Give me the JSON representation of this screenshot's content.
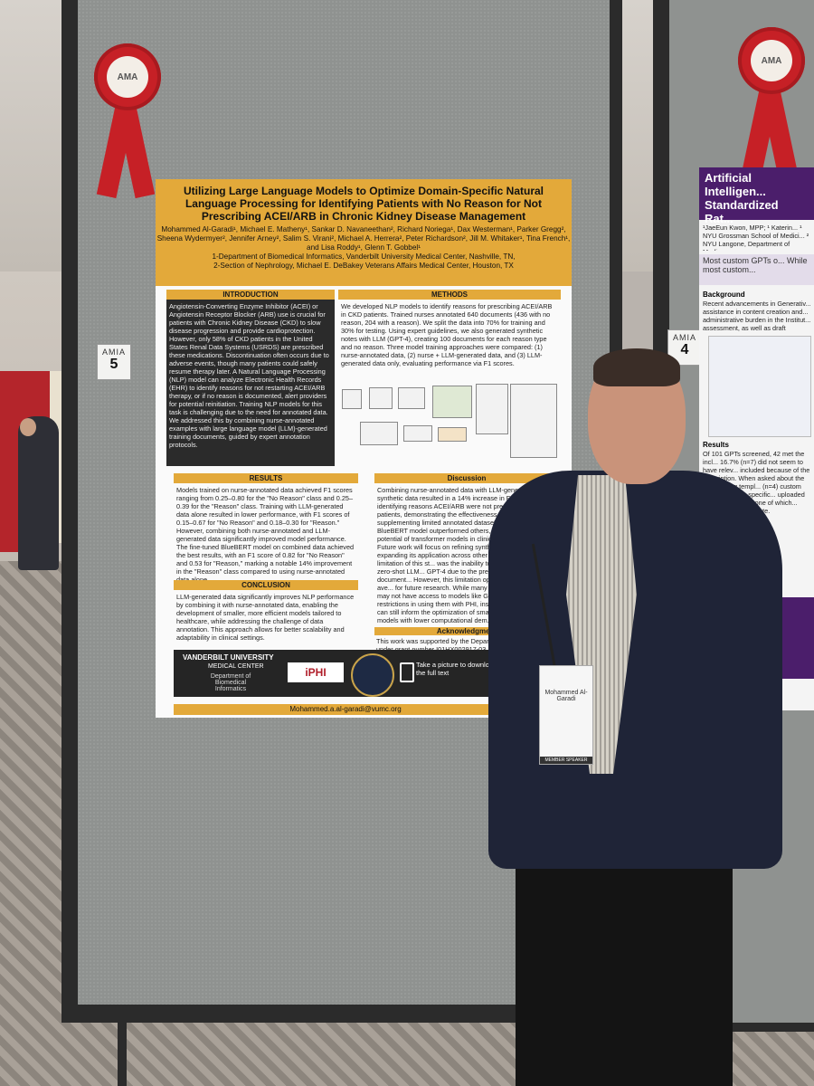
{
  "booth_numbers": {
    "left": "5",
    "right": "4",
    "brand": "AMIA"
  },
  "ribbons": {
    "left_label": "AMA",
    "right_label": "AMA"
  },
  "poster": {
    "title": "Utilizing Large Language Models to Optimize Domain-Specific Natural Language Processing for Identifying Patients with No Reason for Not Prescribing ACEI/ARB in Chronic Kidney Disease Management",
    "authors": "Mohammed Al-Garadi¹, Michael E. Matheny¹, Sankar D. Navaneethan², Richard Noriega¹, Dax Westerman¹, Parker Gregg², Sheena Wydermyer², Jennifer Arney², Salim S. Virani², Michael A. Herrera², Peter Richardson², Jill M. Whitaker¹, Tina French¹, and Lisa Roddy¹, Glenn T. Gobbel¹",
    "affil1": "1-Department of Biomedical Informatics, Vanderbilt University Medical Center, Nashville, TN,",
    "affil2": "2-Section of Nephrology, Michael E. DeBakey Veterans Affairs Medical Center, Houston, TX",
    "intro_head": "INTRODUCTION",
    "intro_text": "Angiotensin-Converting Enzyme Inhibitor (ACEI) or Angiotensin Receptor Blocker (ARB) use is crucial for patients with Chronic Kidney Disease (CKD) to slow disease progression and provide cardioprotection. However, only 58% of CKD patients in the United States Renal Data Systems (USRDS) are prescribed these medications. Discontinuation often occurs due to adverse events, though many patients could safely resume therapy later. A Natural Language Processing (NLP) model can analyze Electronic Health Records (EHR) to identify reasons for not restarting ACEI/ARB therapy, or if no reason is documented, alert providers for potential reinitiation. Training NLP models for this task is challenging due to the need for annotated data. We addressed this by combining nurse-annotated examples with large language model (LLM)-generated training documents, guided by expert annotation protocols.",
    "methods_head": "METHODS",
    "methods_text": "We developed NLP models to identify reasons for prescribing ACEI/ARB in CKD patients. Trained nurses annotated 640 documents (436 with no reason, 204 with a reason). We split the data into 70% for training and 30% for testing. Using expert guidelines, we also generated synthetic notes with LLM (GPT-4), creating 100 documents for each reason type and no reason. Three model training approaches were compared: (1) nurse-annotated data, (2) nurse + LLM-generated data, and (3) LLM-generated data only, evaluating performance via F1 scores.",
    "results_head": "RESULTS",
    "results_text": "Models trained on nurse-annotated data achieved F1 scores ranging from 0.25–0.80 for the \"No Reason\" class and 0.25–0.39 for the \"Reason\" class. Training with LLM-generated data alone resulted in lower performance, with F1 scores of 0.15–0.67 for \"No Reason\" and 0.18–0.30 for \"Reason.\" However, combining both nurse-annotated and LLM-generated data significantly improved model performance. The fine-tuned BlueBERT model on combined data achieved the best results, with an F1 score of 0.82 for \"No Reason\" and 0.53 for \"Reason,\" marking a notable 14% improvement in the \"Reason\" class compared to using nurse-annotated data alone.",
    "discussion_head": "Discussion",
    "discussion_text": "Combining nurse-annotated data with LLM-generated synthetic data resulted in a 14% increase in F1 score for identifying reasons ACEI/ARB were not prescribed in CKD patients, demonstrating the effectiveness of synthetic data in supplementing limited annotated datasets. The fine-tuned BlueBERT model outperformed others, underscoring the potential of transformer models in clinical text analysis. Future work will focus on refining synthetic data and expanding its application across other clinical cases. A limitation of this st... was the inability to directly compare zero-shot LLM... GPT-4 due to the presence of PHI in our document... However, this limitation opens up an important ave... for future research. While many healthcare organiz... may not have access to models like GPT-4 or face... restrictions in using them with PHI, insights from s... models can still inform the optimization of smaller... deployable models with lower computational dem...",
    "conclusion_head": "CONCLUSION",
    "conclusion_text": "LLM-generated data significantly improves NLP performance by combining it with nurse-annotated data, enabling the development of smaller, more efficient models tailored to healthcare, while addressing the challenge of data annotation. This approach allows for better scalability and adaptability in clinical settings.",
    "ack_head": "Acknowledgment",
    "ack_text": "This work was supported by the Department of Vetera... under grant number I01HX002917-03.",
    "footer_vu": "VANDERBILT UNIVERSITY",
    "footer_mc": "MEDICAL CENTER",
    "footer_dept": "Department of Biomedical Informatics",
    "footer_iphi": "iPHI",
    "footer_qr_text": "Take a picture to download the full text",
    "email": "Mohammed.a.al-garadi@vumc.org"
  },
  "right_poster": {
    "title": "Artificial Intelligen... Standardized Rat...",
    "authors": "¹JaeEun Kwon, MPP; ¹ Katerin... ¹ NYU Grossman School of Medici... ² NYU Langone, Department of Medi...",
    "banner": "Most custom GPTs o... While most custom...",
    "background_head": "Background",
    "background_text": "Recent advancements in Generativ... assistance in content creation and... administrative burden in the Institut... assessment, as well as draft protoc...",
    "results_head": "Results",
    "results_text": "Of 101 GPTs screened, 42 met the incl... 16.7% (n=7) did not seem to have relev... included because of the description. When asked about the IRB training templ... (n=4) custom GPTs shared a specific... uploaded by the developer, one of which... consent form template."
  },
  "badge": {
    "name": "Mohammed Al-Garadi",
    "role": "MEMBER SPEAKER"
  }
}
